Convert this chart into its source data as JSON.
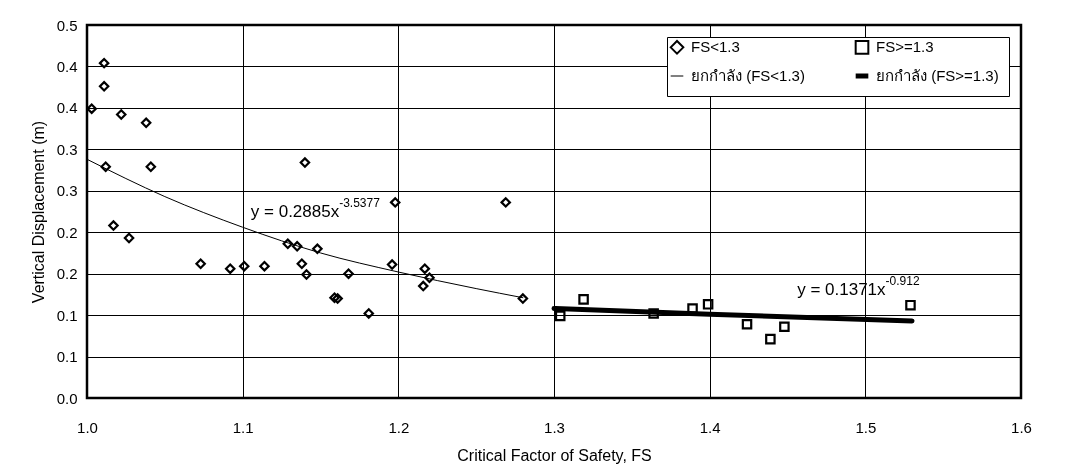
{
  "chart_data": {
    "type": "scatter",
    "xlabel": "Critical Factor of Safety, FS",
    "ylabel": "Vertical Displacement (m)",
    "xlim": [
      1.0,
      1.6
    ],
    "xticks": [
      {
        "value": 1.0,
        "label": "1.0"
      },
      1.1,
      1.2,
      1.3,
      1.4,
      1.5,
      1.6
    ],
    "ylim": [
      0,
      0.45
    ],
    "yticks": [
      {
        "value": 0,
        "label": "0.0"
      },
      {
        "value": 0.05,
        "label": "0.1"
      },
      0.1,
      {
        "value": 0.15,
        "label": "0.2"
      },
      0.2,
      {
        "value": 0.25,
        "label": "0.3"
      },
      0.3,
      {
        "value": 0.35,
        "label": "0.4"
      },
      0.4,
      {
        "value": 0.45,
        "label": "0.5"
      }
    ],
    "grid": true,
    "legend": "top right",
    "series": [
      {
        "name": "FS<1.3",
        "marker": "diamond",
        "color": "#000000",
        "x": [
          1.003,
          1.011,
          1.011,
          1.022,
          1.012,
          1.038,
          1.041,
          1.017,
          1.027,
          1.073,
          1.092,
          1.101,
          1.114,
          1.129,
          1.135,
          1.14,
          1.138,
          1.141,
          1.148,
          1.159,
          1.161,
          1.168,
          1.181,
          1.196,
          1.198,
          1.217,
          1.216,
          1.22,
          1.269,
          1.28
        ],
        "values": [
          0.349,
          0.404,
          0.376,
          0.342,
          0.279,
          0.332,
          0.279,
          0.208,
          0.193,
          0.162,
          0.156,
          0.159,
          0.159,
          0.186,
          0.183,
          0.284,
          0.162,
          0.149,
          0.18,
          0.121,
          0.12,
          0.15,
          0.102,
          0.161,
          0.236,
          0.156,
          0.135,
          0.145,
          0.236,
          0.12
        ]
      },
      {
        "name": "FS>=1.3",
        "marker": "square",
        "color": "#000000",
        "x": [
          1.304,
          1.319,
          1.364,
          1.389,
          1.399,
          1.424,
          1.439,
          1.448,
          1.529
        ],
        "values": [
          0.099,
          0.119,
          0.102,
          0.108,
          0.113,
          0.089,
          0.071,
          0.086,
          0.112
        ]
      },
      {
        "name": "ยกกำลัง (FS<1.3)",
        "type": "line",
        "color": "#000000",
        "x": [
          1.0,
          1.05,
          1.1,
          1.15,
          1.2,
          1.25,
          1.28
        ],
        "values": [
          0.288,
          0.243,
          0.206,
          0.175,
          0.152,
          0.132,
          0.121
        ]
      },
      {
        "name": "ยกกำลัง (FS>=1.3)",
        "type": "line",
        "color": "#000000",
        "x": [
          1.3,
          1.4,
          1.53
        ],
        "values": [
          0.108,
          0.101,
          0.093
        ]
      }
    ],
    "annotations": [
      "y = 0.2885x$^{-3.5377}$",
      "y = 0.1371x$^{-0.912}$"
    ]
  }
}
